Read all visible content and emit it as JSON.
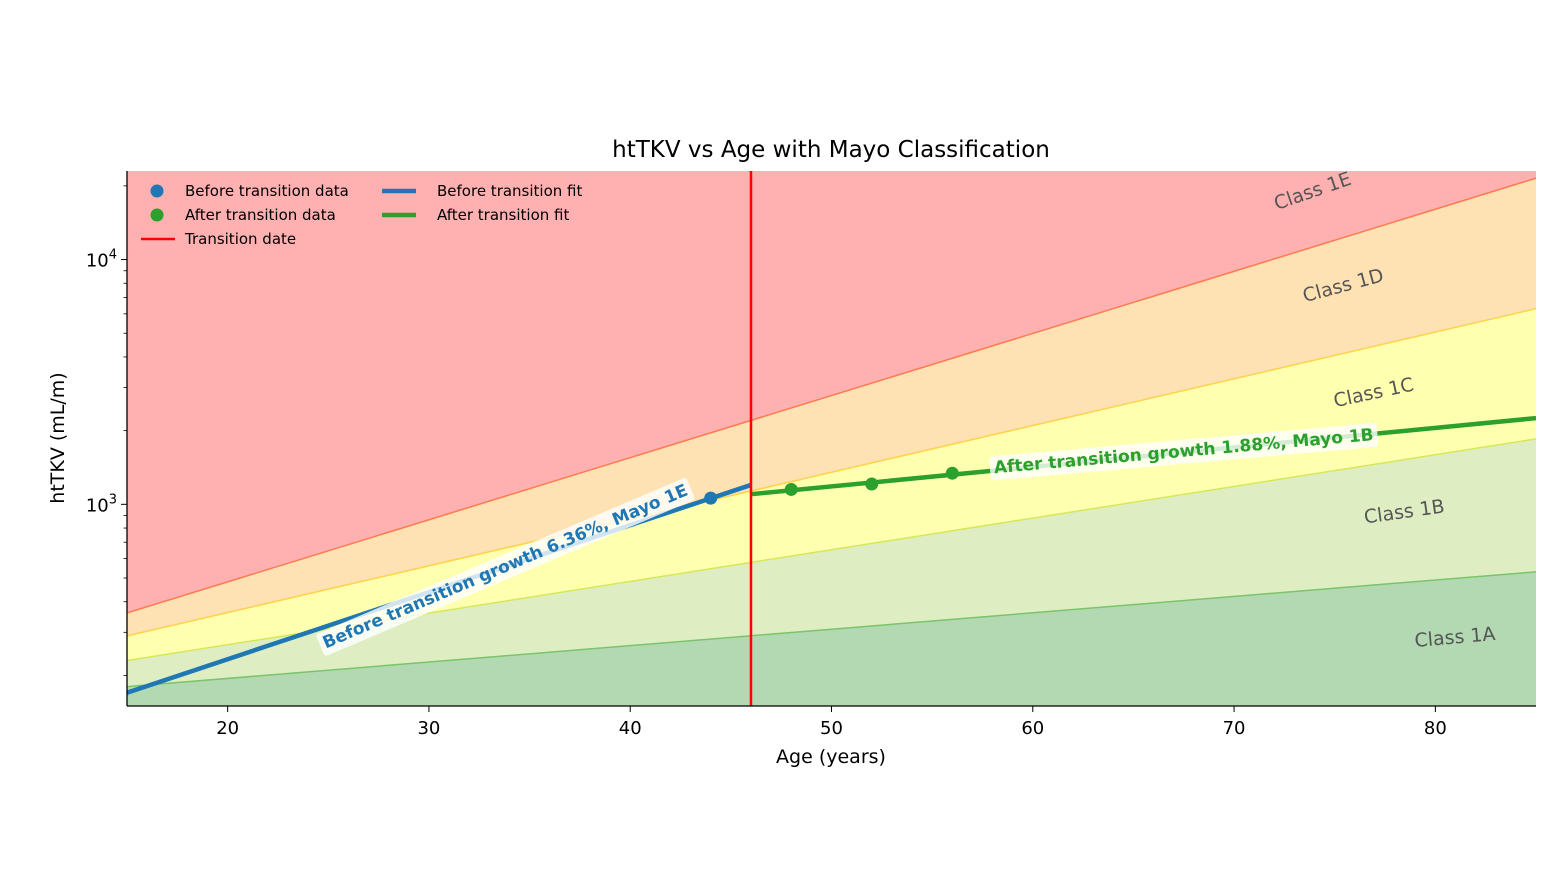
{
  "chart_data": {
    "type": "line",
    "title": "htTKV vs Age with Mayo Classification",
    "xlabel": "Age (years)",
    "ylabel": "htTKV (mL/m)",
    "xlim": [
      15,
      85
    ],
    "ylim": [
      150,
      23000
    ],
    "yscale": "log",
    "xticks": [
      20,
      30,
      40,
      50,
      60,
      70,
      80
    ],
    "xtick_labels": [
      "20",
      "30",
      "40",
      "50",
      "60",
      "70",
      "80"
    ],
    "yticks": [
      1000,
      10000
    ],
    "ytick_labels": [
      {
        "base": "10",
        "exp": "3"
      },
      {
        "base": "10",
        "exp": "4"
      }
    ],
    "transition_age": 46,
    "bands": [
      {
        "label": "Class 1A",
        "color": "#b3d9b3",
        "line_color": "#7bc46a",
        "upper_start": 180,
        "upper_end": 530
      },
      {
        "label": "Class 1B",
        "color": "#dfeec2",
        "line_color": "#d6e85a",
        "upper_start": 230,
        "upper_end": 1850
      },
      {
        "label": "Class 1C",
        "color": "#ffffb0",
        "line_color": "#ffd24d",
        "upper_start": 290,
        "upper_end": 6300
      },
      {
        "label": "Class 1D",
        "color": "#ffe2b3",
        "line_color": "#ff7a50",
        "upper_start": 360,
        "upper_end": 21500
      },
      {
        "label": "Class 1E",
        "color": "#ffb0b0",
        "line_color": null,
        "upper_start": null,
        "upper_end": null
      }
    ],
    "band_labels": [
      {
        "text": "Class 1A",
        "x": 81,
        "y": 270,
        "rot": -5
      },
      {
        "text": "Class 1B",
        "x": 78.5,
        "y": 880,
        "rot": -8
      },
      {
        "text": "Class 1C",
        "x": 77,
        "y": 2700,
        "rot": -12
      },
      {
        "text": "Class 1D",
        "x": 75.5,
        "y": 7400,
        "rot": -15
      },
      {
        "text": "Class 1E",
        "x": 74,
        "y": 18000,
        "rot": -19
      }
    ],
    "series": [
      {
        "name": "Before transition data",
        "kind": "scatter",
        "color": "#1f77b4",
        "points": [
          [
            44,
            1060
          ]
        ]
      },
      {
        "name": "After transition data",
        "kind": "scatter",
        "color": "#2ca02c",
        "points": [
          [
            48,
            1150
          ],
          [
            52,
            1210
          ],
          [
            56,
            1340
          ]
        ]
      },
      {
        "name": "Before transition fit",
        "kind": "line",
        "color": "#1f77b4",
        "points": [
          [
            15,
            170
          ],
          [
            46,
            1200
          ]
        ]
      },
      {
        "name": "After transition fit",
        "kind": "line",
        "color": "#2ca02c",
        "points": [
          [
            46,
            1100
          ],
          [
            85,
            2250
          ]
        ]
      },
      {
        "name": "Transition date",
        "kind": "vline",
        "color": "#ff0000",
        "x": 46
      }
    ],
    "annotations": [
      {
        "text": "Before transition growth 6.36%, Mayo 1E",
        "x": 33.8,
        "y": 555,
        "rot": -23,
        "color": "#1f77b4"
      },
      {
        "text": "After transition growth 1.88%, Mayo 1B",
        "x": 67.5,
        "y": 1640,
        "rot": -5,
        "color": "#2ca02c"
      }
    ],
    "legend": {
      "placement": "top-left",
      "entries": [
        {
          "label": "Before transition data",
          "type": "marker",
          "color": "#1f77b4"
        },
        {
          "label": "Before transition fit",
          "type": "line",
          "color": "#1f77b4"
        },
        {
          "label": "After transition data",
          "type": "marker",
          "color": "#2ca02c"
        },
        {
          "label": "After transition fit",
          "type": "line",
          "color": "#2ca02c"
        },
        {
          "label": "Transition date",
          "type": "thinline",
          "color": "#ff0000"
        }
      ]
    }
  }
}
